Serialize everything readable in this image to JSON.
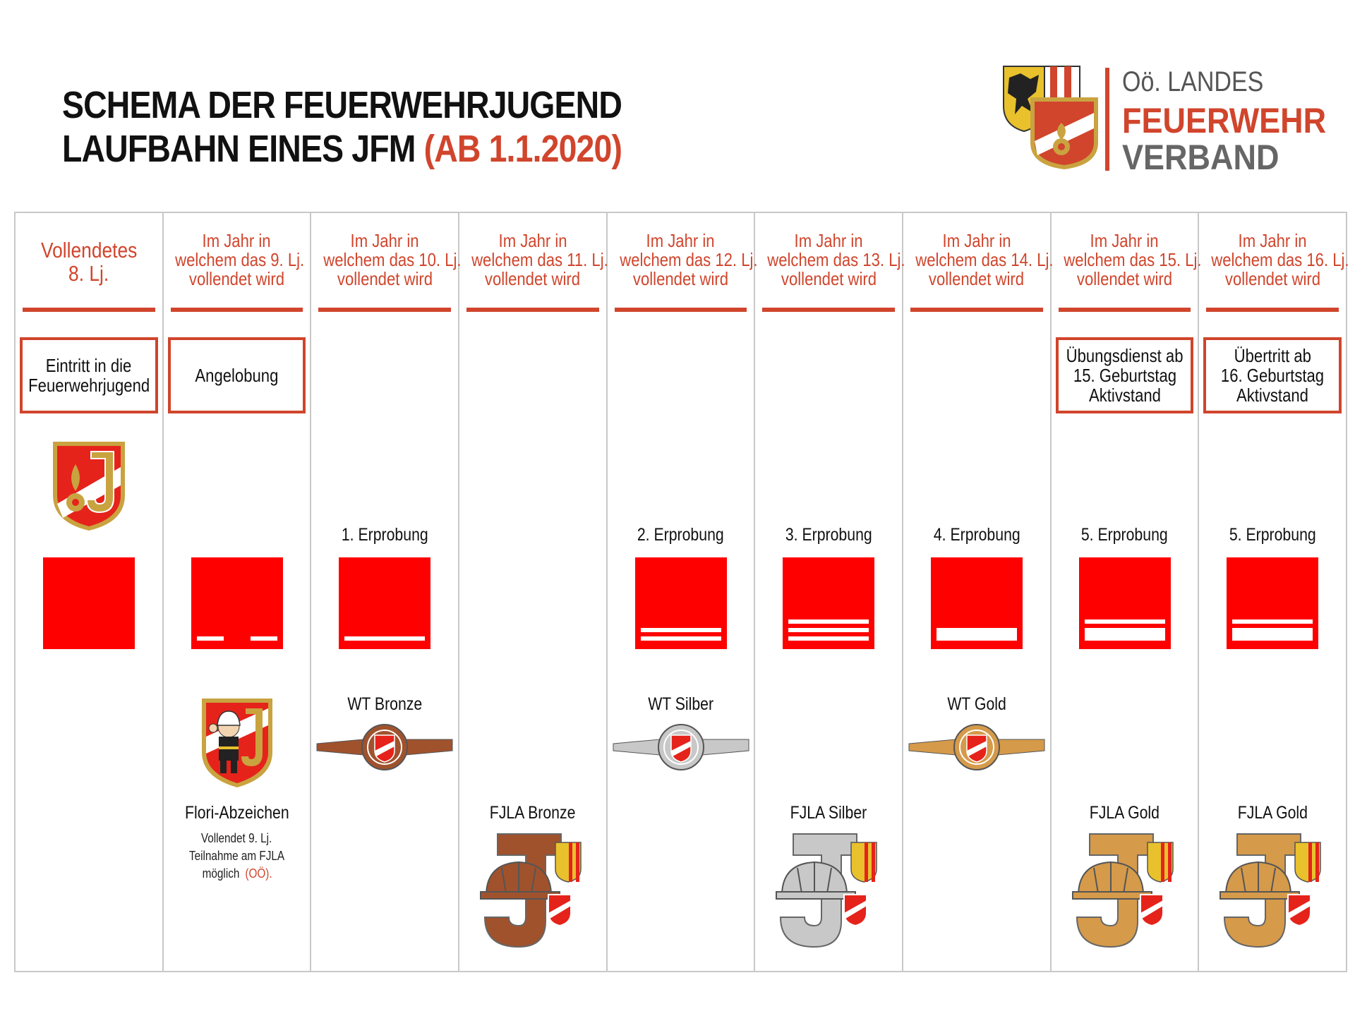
{
  "header": {
    "title_line1": "SCHEMA DER FEUERWEHRJUGEND",
    "title_line2": "LAUFBAHN EINES JFM",
    "title_accent": "(AB 1.1.2020)"
  },
  "logo": {
    "line1": "Oö. LANDES",
    "line2": "FEUERWEHR",
    "line3": "VERBAND"
  },
  "colors": {
    "accent": "#d0452c",
    "square_red": "#ff0000",
    "bronze": "#a0522d",
    "silver": "#c8c8c8",
    "gold": "#d59a4a",
    "grid_line": "#c8c8c8"
  },
  "columns": [
    {
      "heading": [
        "Vollendetes",
        "8. Lj."
      ],
      "box": [
        "Eintritt in die",
        "Feuerwehrjugend"
      ],
      "test": "",
      "stripes": "none",
      "wt": "",
      "wt_tier": "",
      "fjla": "",
      "fjla_tier": "",
      "badge": "jugend-emblem-icon"
    },
    {
      "heading": [
        "Im Jahr in",
        "welchem das 9. Lj.",
        "vollendet wird"
      ],
      "box": [
        "Angelobung"
      ],
      "test": "",
      "stripes": "dashes",
      "wt": "",
      "wt_tier": "",
      "fjla": "Flori-Abzeichen",
      "fjla_tier": "",
      "badge": "flori-badge-icon",
      "note": [
        "Vollendet 9. Lj.",
        "Teilnahme am FJLA",
        "möglich"
      ],
      "note_accent": "(OÖ)."
    },
    {
      "heading": [
        "Im Jahr in",
        "welchem das 10. Lj.",
        "vollendet wird"
      ],
      "box": [],
      "test": "1. Erprobung",
      "stripes": "thin1",
      "wt": "WT Bronze",
      "wt_tier": "bronze",
      "fjla": "",
      "fjla_tier": ""
    },
    {
      "heading": [
        "Im Jahr in",
        "welchem das 11. Lj.",
        "vollendet wird"
      ],
      "box": [],
      "test": "",
      "stripes": "",
      "wt": "",
      "wt_tier": "",
      "fjla": "FJLA Bronze",
      "fjla_tier": "bronze"
    },
    {
      "heading": [
        "Im Jahr in",
        "welchem das 12. Lj.",
        "vollendet wird"
      ],
      "box": [],
      "test": "2. Erprobung",
      "stripes": "thin2",
      "wt": "WT Silber",
      "wt_tier": "silver",
      "fjla": "",
      "fjla_tier": ""
    },
    {
      "heading": [
        "Im Jahr in",
        "welchem das 13. Lj.",
        "vollendet wird"
      ],
      "box": [],
      "test": "3. Erprobung",
      "stripes": "thin3",
      "wt": "",
      "wt_tier": "",
      "fjla": "FJLA Silber",
      "fjla_tier": "silver"
    },
    {
      "heading": [
        "Im Jahr in",
        "welchem das 14. Lj.",
        "vollendet wird"
      ],
      "box": [],
      "test": "4. Erprobung",
      "stripes": "thick1",
      "wt": "WT Gold",
      "wt_tier": "gold",
      "fjla": "",
      "fjla_tier": ""
    },
    {
      "heading": [
        "Im Jahr in",
        "welchem das 15. Lj.",
        "vollendet wird"
      ],
      "box": [
        "Übungsdienst ab",
        "15. Geburtstag",
        "Aktivstand"
      ],
      "test": "5. Erprobung",
      "stripes": "thin-thick",
      "wt": "",
      "wt_tier": "",
      "fjla": "FJLA Gold",
      "fjla_tier": "gold"
    },
    {
      "heading": [
        "Im Jahr in",
        "welchem das 16. Lj.",
        "vollendet wird"
      ],
      "box": [
        "Übertritt ab",
        "16. Geburtstag",
        "Aktivstand"
      ],
      "test": "5. Erprobung",
      "stripes": "thin-thick",
      "wt": "",
      "wt_tier": "",
      "fjla": "FJLA Gold",
      "fjla_tier": "gold"
    }
  ]
}
